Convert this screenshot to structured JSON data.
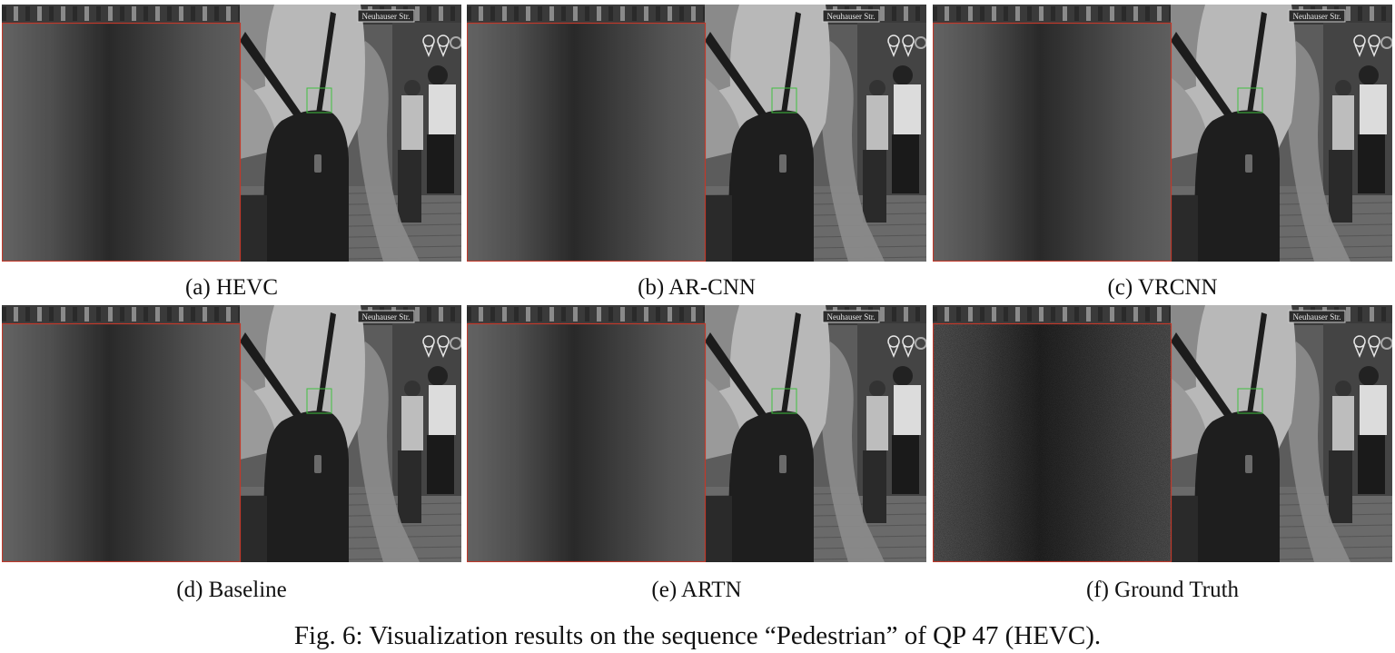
{
  "panels": [
    {
      "label": "(a) HEVC",
      "sign_text": "Neuhauser Str.",
      "crop": "blur"
    },
    {
      "label": "(b) AR-CNN",
      "sign_text": "Neuhauser Str.",
      "crop": "blur"
    },
    {
      "label": "(c) VRCNN",
      "sign_text": "Neuhauser Str.",
      "crop": "blur"
    },
    {
      "label": "(d) Baseline",
      "sign_text": "Neuhauser Str.",
      "crop": "blur"
    },
    {
      "label": "(e) ARTN",
      "sign_text": "Neuhauser Str.",
      "crop": "blur"
    },
    {
      "label": "(f) Ground Truth",
      "sign_text": "Neuhauser Str.",
      "crop": "noise"
    }
  ],
  "figure": {
    "caption": "Fig. 6: Visualization results on the sequence “Pedestrian” of QP 47 (HEVC)."
  },
  "colors": {
    "zoom_border": "#c0392b",
    "roi_box": "#3fbf3f"
  }
}
